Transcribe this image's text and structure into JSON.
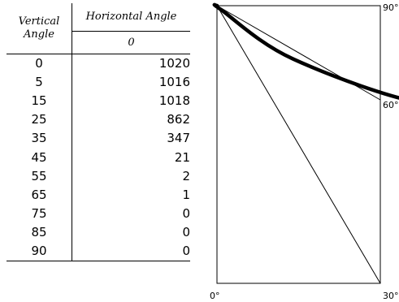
{
  "table": {
    "header_vertical": "Vertical\nAngle",
    "header_horizontal": "Horizontal Angle",
    "header_horizontal_sub": "0",
    "rows": [
      {
        "angle": "0",
        "value": "1020"
      },
      {
        "angle": "5",
        "value": "1016"
      },
      {
        "angle": "15",
        "value": "1018"
      },
      {
        "angle": "25",
        "value": "862"
      },
      {
        "angle": "35",
        "value": "347"
      },
      {
        "angle": "45",
        "value": "21"
      },
      {
        "angle": "55",
        "value": "2"
      },
      {
        "angle": "65",
        "value": "1"
      },
      {
        "angle": "75",
        "value": "0"
      },
      {
        "angle": "85",
        "value": "0"
      },
      {
        "angle": "90",
        "value": "0"
      }
    ]
  },
  "chart_data": {
    "type": "line",
    "title": "",
    "xlabel": "",
    "ylabel": "",
    "x": [
      0,
      5,
      15,
      25,
      35,
      45,
      55,
      65,
      75,
      85,
      90
    ],
    "series": [
      {
        "values": [
          1020,
          1016,
          1018,
          862,
          347,
          21,
          2,
          1,
          0,
          0,
          0
        ]
      }
    ],
    "angle_labels": [
      "0°",
      "30°",
      "60°",
      "90°"
    ],
    "colors": {
      "curve": "#000000",
      "frame": "#000000"
    }
  }
}
